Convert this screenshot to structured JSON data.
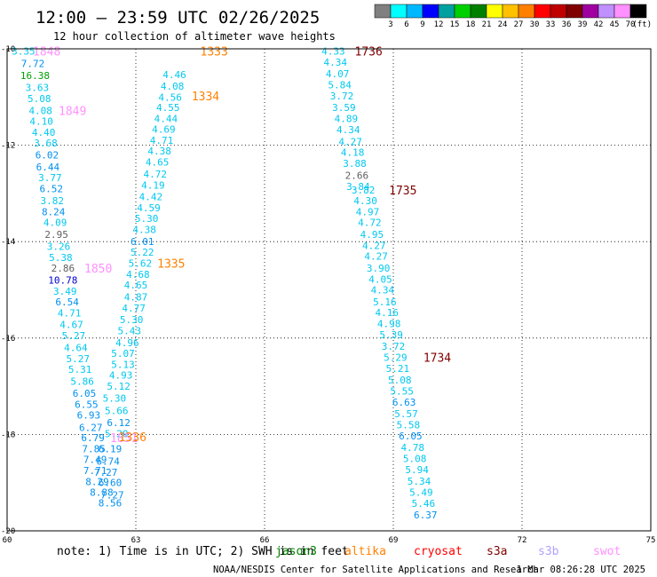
{
  "chart_data": {
    "type": "scatter",
    "title": "12:00 – 23:59 UTC 02/26/2025",
    "subtitle": "12 hour collection of altimeter wave heights",
    "xlim": [
      60,
      75
    ],
    "ylim": [
      -20,
      -10
    ],
    "x_ticks": [
      "60",
      "63",
      "66",
      "69",
      "72",
      "75"
    ],
    "y_ticks": [
      "-10",
      "-12",
      "-14",
      "-16",
      "-18",
      "-20"
    ],
    "grid": "dotted",
    "colorbar": {
      "unit": "(ft)",
      "labels": [
        "3",
        "6",
        "9",
        "12",
        "15",
        "18",
        "21",
        "24",
        "27",
        "30",
        "33",
        "36",
        "39",
        "42",
        "45",
        "70"
      ],
      "colors": [
        "#808080",
        "#00ffff",
        "#00b8ff",
        "#0000ff",
        "#00a0a0",
        "#00d000",
        "#008000",
        "#ffff00",
        "#ffc000",
        "#ff8000",
        "#ff0000",
        "#c00000",
        "#800000",
        "#a000a0",
        "#c090ff",
        "#ff90ff",
        "#000000"
      ]
    },
    "series": [
      {
        "name": "jason3",
        "color": "#00c0f0",
        "points": [
          {
            "x": 60.38,
            "y": -10.05,
            "v": "3.35"
          },
          {
            "x": 60.6,
            "y": -10.3,
            "v": "7.72"
          },
          {
            "x": 60.65,
            "y": -10.55,
            "v": "16.38"
          },
          {
            "x": 60.7,
            "y": -10.8,
            "v": "3.63"
          },
          {
            "x": 60.75,
            "y": -11.03,
            "v": "5.08"
          },
          {
            "x": 60.78,
            "y": -11.28,
            "v": "4.08"
          },
          {
            "x": 60.8,
            "y": -11.5,
            "v": "4.10"
          },
          {
            "x": 60.85,
            "y": -11.73,
            "v": "4.40"
          },
          {
            "x": 60.9,
            "y": -11.95,
            "v": "3.68"
          },
          {
            "x": 60.93,
            "y": -12.2,
            "v": "6.02"
          },
          {
            "x": 60.95,
            "y": -12.45,
            "v": "6.44"
          },
          {
            "x": 61.0,
            "y": -12.67,
            "v": "3.77"
          },
          {
            "x": 61.03,
            "y": -12.9,
            "v": "6.52"
          },
          {
            "x": 61.05,
            "y": -13.15,
            "v": "3.82"
          },
          {
            "x": 61.08,
            "y": -13.38,
            "v": "8.24"
          },
          {
            "x": 61.12,
            "y": -13.6,
            "v": "4.09"
          },
          {
            "x": 61.15,
            "y": -13.85,
            "v": "2.95"
          },
          {
            "x": 61.2,
            "y": -14.1,
            "v": "3.26"
          },
          {
            "x": 61.25,
            "y": -14.33,
            "v": "5.38"
          },
          {
            "x": 61.3,
            "y": -14.55,
            "v": "2.86"
          },
          {
            "x": 61.3,
            "y": -14.8,
            "v": "10.78"
          },
          {
            "x": 61.35,
            "y": -15.03,
            "v": "3.49"
          },
          {
            "x": 61.4,
            "y": -15.25,
            "v": "6.54"
          },
          {
            "x": 61.45,
            "y": -15.48,
            "v": "4.71"
          },
          {
            "x": 61.5,
            "y": -15.72,
            "v": "4.67"
          },
          {
            "x": 61.55,
            "y": -15.95,
            "v": "5.27"
          },
          {
            "x": 61.6,
            "y": -16.2,
            "v": "4.64"
          },
          {
            "x": 61.65,
            "y": -16.43,
            "v": "5.27"
          },
          {
            "x": 61.7,
            "y": -16.65,
            "v": "5.31"
          },
          {
            "x": 61.75,
            "y": -16.9,
            "v": "5.86"
          },
          {
            "x": 61.8,
            "y": -17.15,
            "v": "6.05"
          },
          {
            "x": 61.85,
            "y": -17.38,
            "v": "6.55"
          },
          {
            "x": 61.9,
            "y": -17.6,
            "v": "6.93"
          },
          {
            "x": 61.95,
            "y": -17.85,
            "v": "6.27"
          },
          {
            "x": 62.0,
            "y": -18.07,
            "v": "6.79"
          },
          {
            "x": 62.02,
            "y": -18.3,
            "v": "7.85"
          },
          {
            "x": 62.05,
            "y": -18.52,
            "v": "7.49"
          },
          {
            "x": 62.05,
            "y": -18.75,
            "v": "7.71"
          },
          {
            "x": 62.1,
            "y": -18.98,
            "v": "8.29"
          },
          {
            "x": 62.2,
            "y": -19.2,
            "v": "8.88"
          },
          {
            "x": 62.4,
            "y": -19.42,
            "v": "8.56"
          },
          {
            "x": 62.45,
            "y": -19.25,
            "v": "7.27"
          },
          {
            "x": 62.4,
            "y": -19.0,
            "v": "6.60"
          },
          {
            "x": 62.3,
            "y": -18.78,
            "v": "7.27"
          },
          {
            "x": 62.35,
            "y": -18.55,
            "v": "6.74"
          },
          {
            "x": 62.4,
            "y": -18.3,
            "v": "6.19"
          },
          {
            "x": 62.55,
            "y": -17.98,
            "v": "5.20"
          },
          {
            "x": 62.6,
            "y": -17.75,
            "v": "6.12"
          },
          {
            "x": 62.55,
            "y": -17.5,
            "v": "5.66"
          },
          {
            "x": 62.5,
            "y": -17.25,
            "v": "5.30"
          },
          {
            "x": 62.6,
            "y": -17.0,
            "v": "5.12"
          },
          {
            "x": 62.65,
            "y": -16.77,
            "v": "4.93"
          },
          {
            "x": 62.7,
            "y": -16.55,
            "v": "5.13"
          },
          {
            "x": 62.7,
            "y": -16.32,
            "v": "5.07"
          },
          {
            "x": 62.8,
            "y": -16.1,
            "v": "4.96"
          },
          {
            "x": 62.85,
            "y": -15.85,
            "v": "5.43"
          },
          {
            "x": 62.9,
            "y": -15.62,
            "v": "5.30"
          },
          {
            "x": 62.95,
            "y": -15.38,
            "v": "4.77"
          },
          {
            "x": 63.0,
            "y": -15.15,
            "v": "4.87"
          },
          {
            "x": 63.0,
            "y": -14.9,
            "v": "4.65"
          },
          {
            "x": 63.05,
            "y": -14.68,
            "v": "4.68"
          },
          {
            "x": 63.1,
            "y": -14.45,
            "v": "5.62"
          },
          {
            "x": 63.15,
            "y": -14.22,
            "v": "5.22"
          },
          {
            "x": 63.15,
            "y": -14.0,
            "v": "6.01"
          },
          {
            "x": 63.2,
            "y": -13.75,
            "v": "4.38"
          },
          {
            "x": 63.25,
            "y": -13.52,
            "v": "5.30"
          },
          {
            "x": 63.3,
            "y": -13.3,
            "v": "4.59"
          },
          {
            "x": 63.35,
            "y": -13.07,
            "v": "4.42"
          },
          {
            "x": 63.4,
            "y": -12.83,
            "v": "4.19"
          },
          {
            "x": 63.45,
            "y": -12.6,
            "v": "4.72"
          },
          {
            "x": 63.5,
            "y": -12.35,
            "v": "4.65"
          },
          {
            "x": 63.55,
            "y": -12.12,
            "v": "4.38"
          },
          {
            "x": 63.6,
            "y": -11.9,
            "v": "4.71"
          },
          {
            "x": 63.65,
            "y": -11.67,
            "v": "4.69"
          },
          {
            "x": 63.7,
            "y": -11.45,
            "v": "4.44"
          },
          {
            "x": 63.75,
            "y": -11.22,
            "v": "4.55"
          },
          {
            "x": 63.8,
            "y": -11.0,
            "v": "4.56"
          },
          {
            "x": 63.85,
            "y": -10.77,
            "v": "4.08"
          },
          {
            "x": 63.9,
            "y": -10.53,
            "v": "4.46"
          },
          {
            "x": 67.6,
            "y": -10.05,
            "v": "4.33"
          },
          {
            "x": 67.65,
            "y": -10.28,
            "v": "4.34"
          },
          {
            "x": 67.7,
            "y": -10.52,
            "v": "4.07"
          },
          {
            "x": 67.75,
            "y": -10.75,
            "v": "5.84"
          },
          {
            "x": 67.8,
            "y": -10.98,
            "v": "3.72"
          },
          {
            "x": 67.85,
            "y": -11.22,
            "v": "3.59"
          },
          {
            "x": 67.9,
            "y": -11.45,
            "v": "4.89"
          },
          {
            "x": 67.95,
            "y": -11.68,
            "v": "4.34"
          },
          {
            "x": 68.0,
            "y": -11.92,
            "v": "4.27"
          },
          {
            "x": 68.05,
            "y": -12.15,
            "v": "4.18"
          },
          {
            "x": 68.1,
            "y": -12.38,
            "v": "3.88"
          },
          {
            "x": 68.15,
            "y": -12.62,
            "v": "2.66"
          },
          {
            "x": 68.18,
            "y": -12.85,
            "v": "3.84"
          },
          {
            "x": 68.3,
            "y": -12.93,
            "v": "3.82"
          },
          {
            "x": 68.35,
            "y": -13.15,
            "v": "4.30"
          },
          {
            "x": 68.4,
            "y": -13.38,
            "v": "4.97"
          },
          {
            "x": 68.45,
            "y": -13.6,
            "v": "4.72"
          },
          {
            "x": 68.5,
            "y": -13.85,
            "v": "4.95"
          },
          {
            "x": 68.55,
            "y": -14.08,
            "v": "4.27"
          },
          {
            "x": 68.6,
            "y": -14.3,
            "v": "4.27"
          },
          {
            "x": 68.65,
            "y": -14.55,
            "v": "3.90"
          },
          {
            "x": 68.7,
            "y": -14.78,
            "v": "4.05"
          },
          {
            "x": 68.75,
            "y": -15.0,
            "v": "4.34"
          },
          {
            "x": 68.8,
            "y": -15.25,
            "v": "5.16"
          },
          {
            "x": 68.85,
            "y": -15.47,
            "v": "4.16"
          },
          {
            "x": 68.9,
            "y": -15.7,
            "v": "4.98"
          },
          {
            "x": 68.95,
            "y": -15.93,
            "v": "5.39"
          },
          {
            "x": 69.0,
            "y": -16.17,
            "v": "3.72"
          },
          {
            "x": 69.05,
            "y": -16.4,
            "v": "5.29"
          },
          {
            "x": 69.1,
            "y": -16.63,
            "v": "5.21"
          },
          {
            "x": 69.15,
            "y": -16.87,
            "v": "5.08"
          },
          {
            "x": 69.2,
            "y": -17.1,
            "v": "5.55"
          },
          {
            "x": 69.25,
            "y": -17.33,
            "v": "6.63"
          },
          {
            "x": 69.3,
            "y": -17.57,
            "v": "5.57"
          },
          {
            "x": 69.35,
            "y": -17.8,
            "v": "5.58"
          },
          {
            "x": 69.4,
            "y": -18.03,
            "v": "6.05"
          },
          {
            "x": 69.45,
            "y": -18.27,
            "v": "4.78"
          },
          {
            "x": 69.5,
            "y": -18.5,
            "v": "5.08"
          },
          {
            "x": 69.55,
            "y": -18.73,
            "v": "5.94"
          },
          {
            "x": 69.6,
            "y": -18.97,
            "v": "5.34"
          },
          {
            "x": 69.65,
            "y": -19.2,
            "v": "5.49"
          },
          {
            "x": 69.7,
            "y": -19.43,
            "v": "5.46"
          },
          {
            "x": 69.75,
            "y": -19.67,
            "v": "6.37"
          }
        ]
      }
    ],
    "pass_labels": [
      {
        "text": "1848",
        "x": 60.6,
        "y": -10.05,
        "satellite": "swot"
      },
      {
        "text": "1849",
        "x": 61.2,
        "y": -11.28,
        "satellite": "swot"
      },
      {
        "text": "1850",
        "x": 61.8,
        "y": -14.55,
        "satellite": "swot"
      },
      {
        "text": "1851",
        "x": 62.4,
        "y": -18.07,
        "satellite": "swot"
      },
      {
        "text": "1333",
        "x": 64.5,
        "y": -10.05,
        "satellite": "altika"
      },
      {
        "text": "1334",
        "x": 64.3,
        "y": -10.98,
        "satellite": "altika"
      },
      {
        "text": "1335",
        "x": 63.5,
        "y": -14.45,
        "satellite": "altika"
      },
      {
        "text": "1336",
        "x": 62.6,
        "y": -18.05,
        "satellite": "altika"
      },
      {
        "text": "1736",
        "x": 68.1,
        "y": -10.05,
        "satellite": "s3a"
      },
      {
        "text": "1735",
        "x": 68.9,
        "y": -12.93,
        "satellite": "s3a"
      },
      {
        "text": "1734",
        "x": 69.7,
        "y": -16.4,
        "satellite": "s3a"
      }
    ],
    "legend_note": "note: 1) Time is in UTC; 2) SWH is in feet",
    "legend_entries": [
      {
        "name": "jason3",
        "color": "#008000"
      },
      {
        "name": "altika",
        "color": "#ff8000"
      },
      {
        "name": "cryosat",
        "color": "#ff0000"
      },
      {
        "name": "s3a",
        "color": "#800000"
      },
      {
        "name": "s3b",
        "color": "#b0a0ff"
      },
      {
        "name": "swot",
        "color": "#ff90ff"
      }
    ],
    "footer": "NOAA/NESDIS Center for Satellite Applications and Research",
    "timestamp": "1 Mar 08:26:28 UTC 2025"
  }
}
